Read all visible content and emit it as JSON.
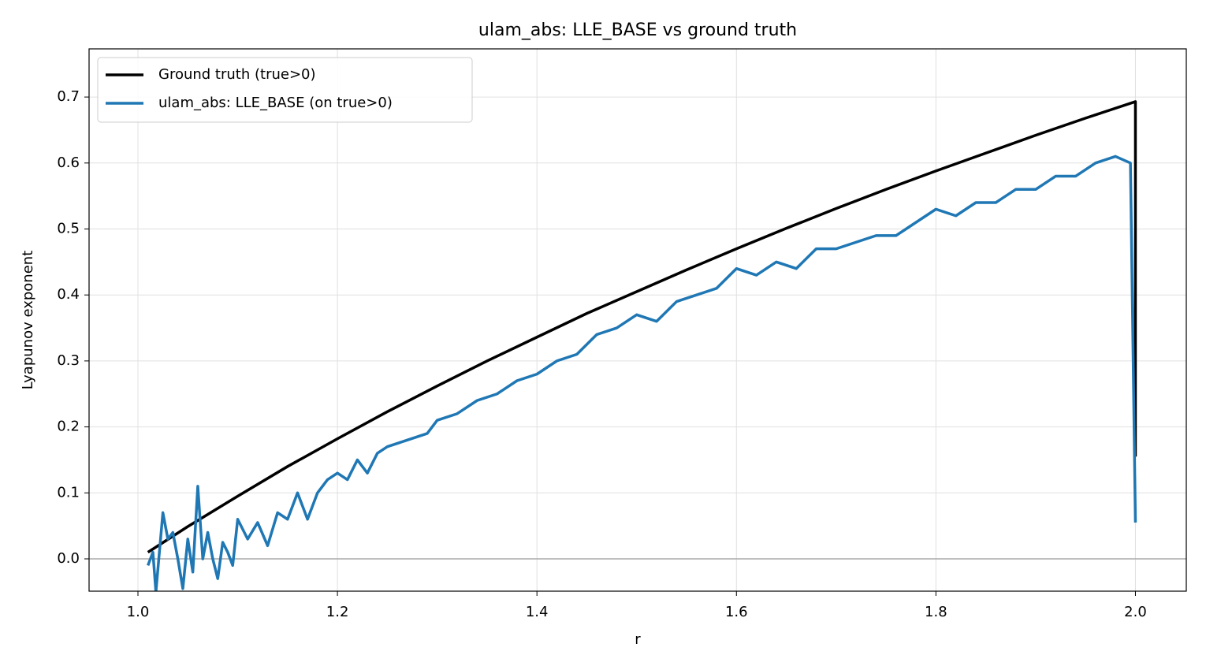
{
  "chart_data": {
    "type": "line",
    "title": "ulam_abs: LLE_BASE vs ground truth",
    "xlabel": "r",
    "ylabel": "Lyapunov exponent",
    "xlim": [
      0.951,
      2.051
    ],
    "ylim": [
      -0.049,
      0.773
    ],
    "xticks": [
      {
        "value": 1.0,
        "label": "1.0"
      },
      1.2,
      1.4,
      1.6,
      1.8,
      {
        "value": 2.0,
        "label": "2.0"
      }
    ],
    "yticks": [
      {
        "value": 0.0,
        "label": "0.0"
      },
      0.1,
      0.2,
      0.3,
      0.4,
      0.5,
      0.6,
      0.7
    ],
    "grid": true,
    "legend": "upper left",
    "zero_line": true,
    "series": [
      {
        "name": "Ground truth (true>0)",
        "color": "#000000",
        "x": [
          1.01,
          1.05,
          1.1,
          1.15,
          1.2,
          1.25,
          1.3,
          1.35,
          1.4,
          1.45,
          1.5,
          1.55,
          1.6,
          1.65,
          1.7,
          1.75,
          1.8,
          1.85,
          1.9,
          1.95,
          2.0,
          2.0
        ],
        "values": [
          0.01,
          0.049,
          0.095,
          0.14,
          0.182,
          0.223,
          0.262,
          0.3,
          0.336,
          0.372,
          0.405,
          0.438,
          0.47,
          0.501,
          0.531,
          0.56,
          0.588,
          0.615,
          0.642,
          0.668,
          0.693,
          0.155
        ]
      },
      {
        "name": "ulam_abs: LLE_BASE (on true>0)",
        "color": "#1f77b4",
        "x": [
          1.01,
          1.015,
          1.018,
          1.025,
          1.03,
          1.035,
          1.04,
          1.045,
          1.05,
          1.055,
          1.06,
          1.065,
          1.07,
          1.075,
          1.08,
          1.085,
          1.09,
          1.095,
          1.1,
          1.11,
          1.12,
          1.13,
          1.14,
          1.15,
          1.16,
          1.17,
          1.18,
          1.19,
          1.2,
          1.21,
          1.22,
          1.23,
          1.24,
          1.25,
          1.27,
          1.29,
          1.3,
          1.32,
          1.34,
          1.36,
          1.38,
          1.4,
          1.42,
          1.44,
          1.46,
          1.48,
          1.5,
          1.52,
          1.54,
          1.56,
          1.58,
          1.6,
          1.62,
          1.64,
          1.66,
          1.68,
          1.7,
          1.72,
          1.74,
          1.76,
          1.78,
          1.8,
          1.82,
          1.84,
          1.86,
          1.88,
          1.9,
          1.92,
          1.94,
          1.96,
          1.98,
          1.995,
          2.0
        ],
        "values": [
          -0.01,
          0.01,
          -0.05,
          0.07,
          0.03,
          0.04,
          0.0,
          -0.045,
          0.03,
          -0.02,
          0.11,
          0.0,
          0.04,
          0.0,
          -0.03,
          0.025,
          0.01,
          -0.01,
          0.06,
          0.03,
          0.055,
          0.02,
          0.07,
          0.06,
          0.1,
          0.06,
          0.1,
          0.12,
          0.13,
          0.12,
          0.15,
          0.13,
          0.16,
          0.17,
          0.18,
          0.19,
          0.21,
          0.22,
          0.24,
          0.25,
          0.27,
          0.28,
          0.3,
          0.31,
          0.34,
          0.35,
          0.37,
          0.36,
          0.39,
          0.4,
          0.41,
          0.44,
          0.43,
          0.45,
          0.44,
          0.47,
          0.47,
          0.48,
          0.49,
          0.49,
          0.51,
          0.53,
          0.52,
          0.54,
          0.54,
          0.56,
          0.56,
          0.58,
          0.58,
          0.6,
          0.61,
          0.6,
          0.055
        ]
      }
    ]
  }
}
